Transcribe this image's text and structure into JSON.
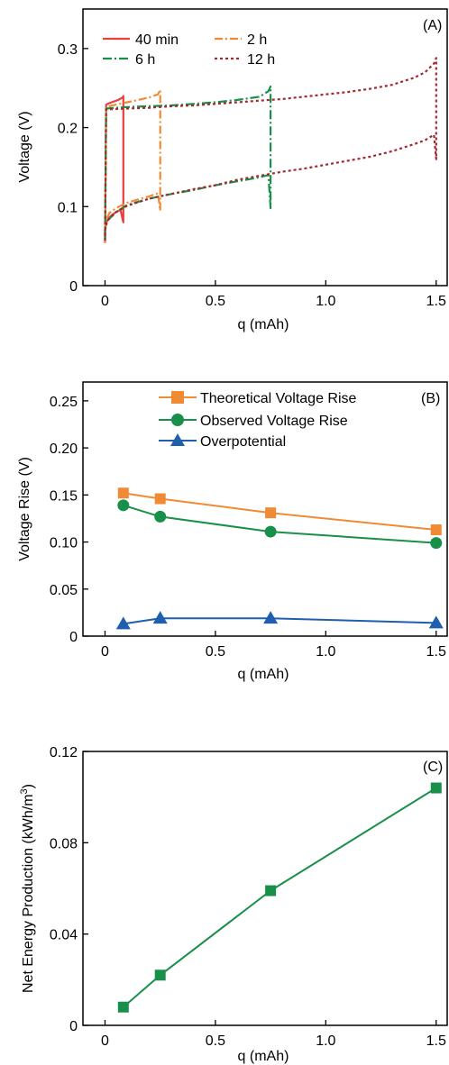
{
  "chart_data": [
    {
      "type": "line",
      "panel_label": "(A)",
      "xlabel": "q (mAh)",
      "ylabel": "Voltage (V)",
      "xlim": [
        -0.1,
        1.55
      ],
      "ylim": [
        0,
        0.35
      ],
      "xticks": [
        0,
        0.5,
        1.0,
        1.5
      ],
      "xtick_labels": [
        "0",
        "0.5",
        "1.0",
        "1.5"
      ],
      "yticks": [
        0,
        0.1,
        0.2,
        0.3
      ],
      "ytick_labels": [
        "0",
        "0.1",
        "0.2",
        "0.3"
      ],
      "legend_placement": "top-left",
      "series": [
        {
          "name": "40 min",
          "color": "#e8403f",
          "dash": "solid",
          "x": [
            0,
            0.005,
            0.02,
            0.04,
            0.06,
            0.08,
            0.083,
            0.083,
            0.07,
            0.05,
            0.03,
            0.015,
            0.005,
            0,
            0
          ],
          "y": [
            0.054,
            0.229,
            0.231,
            0.233,
            0.235,
            0.238,
            0.24,
            0.08,
            0.096,
            0.093,
            0.089,
            0.085,
            0.079,
            0.07,
            0.054
          ]
        },
        {
          "name": "2 h",
          "color": "#f08a34",
          "dash": "9,3,2,3",
          "x": [
            0,
            0.005,
            0.05,
            0.1,
            0.15,
            0.2,
            0.24,
            0.25,
            0.25,
            0.24,
            0.2,
            0.15,
            0.1,
            0.05,
            0.02,
            0.005,
            0,
            0
          ],
          "y": [
            0.055,
            0.226,
            0.229,
            0.232,
            0.235,
            0.238,
            0.242,
            0.248,
            0.095,
            0.117,
            0.113,
            0.109,
            0.105,
            0.098,
            0.092,
            0.083,
            0.073,
            0.055
          ]
        },
        {
          "name": "6 h",
          "color": "#19904a",
          "dash": "10,3,2,3",
          "x": [
            0,
            0.005,
            0.1,
            0.2,
            0.3,
            0.4,
            0.5,
            0.6,
            0.7,
            0.74,
            0.75,
            0.75,
            0.74,
            0.7,
            0.6,
            0.5,
            0.4,
            0.3,
            0.2,
            0.1,
            0.05,
            0.01,
            0,
            0
          ],
          "y": [
            0.058,
            0.224,
            0.226,
            0.227,
            0.228,
            0.23,
            0.232,
            0.235,
            0.239,
            0.246,
            0.252,
            0.098,
            0.14,
            0.137,
            0.132,
            0.127,
            0.121,
            0.116,
            0.11,
            0.102,
            0.093,
            0.082,
            0.07,
            0.058
          ]
        },
        {
          "name": "12 h",
          "color": "#a3282f",
          "dash": "3,3",
          "x": [
            0,
            0.005,
            0.1,
            0.2,
            0.3,
            0.4,
            0.5,
            0.6,
            0.7,
            0.8,
            0.9,
            1.0,
            1.1,
            1.2,
            1.3,
            1.4,
            1.45,
            1.49,
            1.5,
            1.5,
            1.49,
            1.45,
            1.4,
            1.3,
            1.2,
            1.1,
            1.0,
            0.9,
            0.8,
            0.7,
            0.6,
            0.5,
            0.4,
            0.3,
            0.2,
            0.1,
            0.05,
            0.01,
            0,
            0
          ],
          "y": [
            0.057,
            0.223,
            0.224,
            0.225,
            0.227,
            0.228,
            0.23,
            0.232,
            0.234,
            0.236,
            0.239,
            0.242,
            0.245,
            0.249,
            0.254,
            0.263,
            0.27,
            0.281,
            0.288,
            0.16,
            0.191,
            0.184,
            0.179,
            0.17,
            0.163,
            0.158,
            0.153,
            0.148,
            0.144,
            0.139,
            0.134,
            0.127,
            0.122,
            0.116,
            0.11,
            0.101,
            0.093,
            0.082,
            0.07,
            0.057
          ]
        }
      ]
    },
    {
      "type": "line",
      "panel_label": "(B)",
      "xlabel": "q (mAh)",
      "ylabel": "Voltage Rise (V)",
      "xlim": [
        -0.1,
        1.55
      ],
      "ylim": [
        0,
        0.27
      ],
      "xticks": [
        0,
        0.5,
        1.0,
        1.5
      ],
      "xtick_labels": [
        "0",
        "0.5",
        "1.0",
        "1.5"
      ],
      "yticks": [
        0,
        0.05,
        0.1,
        0.15,
        0.2,
        0.25
      ],
      "ytick_labels": [
        "0",
        "0.05",
        "0.10",
        "0.15",
        "0.20",
        "0.25"
      ],
      "legend_placement": "top",
      "x": [
        0.083,
        0.25,
        0.75,
        1.5
      ],
      "series": [
        {
          "name": "Theoretical Voltage Rise",
          "color": "#f08a34",
          "marker": "square",
          "values": [
            0.152,
            0.146,
            0.131,
            0.113
          ]
        },
        {
          "name": "Observed Voltage Rise",
          "color": "#19904a",
          "marker": "circle",
          "values": [
            0.139,
            0.127,
            0.111,
            0.099
          ]
        },
        {
          "name": "Overpotential",
          "color": "#1f5fad",
          "marker": "triangle",
          "values": [
            0.013,
            0.019,
            0.019,
            0.014
          ]
        }
      ]
    },
    {
      "type": "line",
      "panel_label": "(C)",
      "xlabel": "q (mAh)",
      "ylabel_main": "Net Energy Production (kWh/m",
      "ylabel_sup": "3",
      "ylabel_end": ")",
      "xlim": [
        -0.1,
        1.55
      ],
      "ylim": [
        0,
        0.12
      ],
      "xticks": [
        0,
        0.5,
        1.0,
        1.5
      ],
      "xtick_labels": [
        "0",
        "0.5",
        "1.0",
        "1.5"
      ],
      "yticks": [
        0,
        0.04,
        0.08,
        0.12
      ],
      "ytick_labels": [
        "0",
        "0.04",
        "0.08",
        "0.12"
      ],
      "x": [
        0.083,
        0.25,
        0.75,
        1.5
      ],
      "series": [
        {
          "color": "#19904a",
          "marker": "square",
          "values": [
            0.008,
            0.022,
            0.059,
            0.104
          ]
        }
      ]
    }
  ]
}
